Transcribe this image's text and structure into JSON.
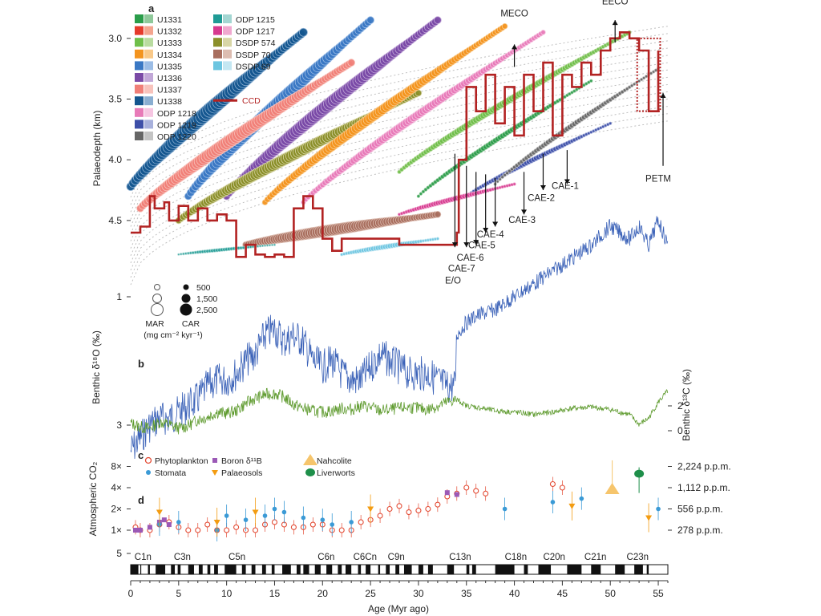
{
  "chart_data": {
    "type": "line",
    "panels": {
      "a": "a",
      "b": "b",
      "c": "c",
      "d": "d"
    },
    "x": {
      "label": "Age (Myr ago)",
      "range": [
        0,
        56
      ],
      "ticks": [
        0,
        5,
        10,
        15,
        20,
        25,
        30,
        35,
        40,
        45,
        50,
        55
      ]
    },
    "palaeodepth": {
      "label": "Palaeodepth (km)",
      "range": [
        2.75,
        4.95
      ],
      "ticks": [
        "3.0",
        "3.5",
        "4.0",
        "4.5"
      ],
      "tick_values": [
        3.0,
        3.5,
        4.0,
        4.5
      ],
      "legend": [
        {
          "label": "U1331",
          "dark": "#2a9d4a",
          "light": "#8fc99a"
        },
        {
          "label": "U1332",
          "dark": "#e53b2c",
          "light": "#f4a58f"
        },
        {
          "label": "U1333",
          "dark": "#6fbf4a",
          "light": "#b9dca0"
        },
        {
          "label": "U1334",
          "dark": "#f3941f",
          "light": "#f9c989"
        },
        {
          "label": "U1335",
          "dark": "#3a78c4",
          "light": "#9cbde6"
        },
        {
          "label": "U1336",
          "dark": "#7a4aa6",
          "light": "#c2a8d8"
        },
        {
          "label": "U1337",
          "dark": "#f07f78",
          "light": "#f8c3bc"
        },
        {
          "label": "U1338",
          "dark": "#14568f",
          "light": "#8aaed1"
        },
        {
          "label": "ODP 1218",
          "dark": "#e87ab8",
          "light": "#f6c6e2"
        },
        {
          "label": "ODP 1219",
          "dark": "#3d4fa8",
          "light": "#a8b1dc"
        },
        {
          "label": "ODP 1220",
          "dark": "#666666",
          "light": "#c4c4c4"
        },
        {
          "label": "ODP 1215",
          "dark": "#1f9b95",
          "light": "#a3d6d2"
        },
        {
          "label": "ODP 1217",
          "dark": "#d63a8f",
          "light": "#f0a8cf"
        },
        {
          "label": "DSDP 574",
          "dark": "#8b8f2a",
          "light": "#d8d6a6"
        },
        {
          "label": "DSDP 70",
          "dark": "#a86e5e",
          "light": "#dcbcb0"
        },
        {
          "label": "DSDP 69",
          "dark": "#6cc5e0",
          "light": "#c4e7f2"
        }
      ],
      "ccd_label": "CCD",
      "ccd_color": "#b22222",
      "ccd": [
        [
          0,
          4.6
        ],
        [
          1,
          4.55
        ],
        [
          2,
          4.3
        ],
        [
          2.5,
          4.4
        ],
        [
          3.5,
          4.35
        ],
        [
          4,
          4.5
        ],
        [
          5,
          4.38
        ],
        [
          6,
          4.5
        ],
        [
          7,
          4.4
        ],
        [
          8,
          4.5
        ],
        [
          9,
          4.45
        ],
        [
          10,
          4.5
        ],
        [
          11,
          4.8
        ],
        [
          12,
          4.7
        ],
        [
          13,
          4.78
        ],
        [
          14,
          4.8
        ],
        [
          15,
          4.78
        ],
        [
          16,
          4.8
        ],
        [
          17,
          4.4
        ],
        [
          18,
          4.3
        ],
        [
          19,
          4.4
        ],
        [
          20,
          4.65
        ],
        [
          21,
          4.75
        ],
        [
          22,
          4.65
        ],
        [
          28,
          4.7
        ],
        [
          34,
          4.6
        ],
        [
          34.2,
          4.0
        ],
        [
          35,
          3.4
        ],
        [
          36,
          3.6
        ],
        [
          37,
          3.3
        ],
        [
          38,
          3.7
        ],
        [
          39,
          3.4
        ],
        [
          40,
          3.8
        ],
        [
          41,
          3.3
        ],
        [
          42,
          3.6
        ],
        [
          43,
          3.2
        ],
        [
          44,
          3.8
        ],
        [
          45,
          3.3
        ],
        [
          46,
          3.4
        ],
        [
          47,
          3.2
        ],
        [
          48,
          3.3
        ],
        [
          49,
          3.1
        ],
        [
          50,
          3.0
        ],
        [
          51,
          2.95
        ],
        [
          52,
          3.0
        ],
        [
          53,
          3.1
        ],
        [
          54,
          3.6
        ],
        [
          55,
          3.1
        ]
      ],
      "mar_label": "MAR",
      "car_label": "CAR",
      "size_units": "(mg cm⁻² kyr⁻¹)",
      "size_legend": [
        "500",
        "1,500",
        "2,500"
      ],
      "events": [
        {
          "label": "MECO",
          "age": 40.0,
          "depth": 3.05
        },
        {
          "label": "EECO",
          "age": 50.5,
          "depth": 2.85
        },
        {
          "label": "PETM",
          "age": 55.5,
          "depth": 3.35
        },
        {
          "label": "E/O",
          "age": 33.8,
          "depth": 4.72
        },
        {
          "label": "CAE-7",
          "age": 35.0,
          "depth": 4.72
        },
        {
          "label": "CAE-6",
          "age": 36.0,
          "depth": 4.7
        },
        {
          "label": "CAE-5",
          "age": 37.0,
          "depth": 4.6
        },
        {
          "label": "CAE-4",
          "age": 38.0,
          "depth": 4.55
        },
        {
          "label": "CAE-3",
          "age": 41.0,
          "depth": 4.45
        },
        {
          "label": "CAE-2",
          "age": 43.0,
          "depth": 4.25
        },
        {
          "label": "CAE-1",
          "age": 45.5,
          "depth": 4.2
        }
      ]
    },
    "benthic_d18O": {
      "label": "Benthic δ¹⁸O (‰)",
      "ticks": [
        "1",
        "3",
        "5"
      ],
      "tick_values": [
        1,
        3,
        5
      ],
      "color": "#3b62b8",
      "points": [
        [
          0,
          3.4
        ],
        [
          1,
          3.2
        ],
        [
          2,
          3.0
        ],
        [
          3,
          2.9
        ],
        [
          4,
          2.9
        ],
        [
          5,
          2.8
        ],
        [
          6,
          2.7
        ],
        [
          7,
          2.6
        ],
        [
          8,
          2.4
        ],
        [
          9,
          2.3
        ],
        [
          10,
          2.3
        ],
        [
          11,
          2.2
        ],
        [
          12,
          2.0
        ],
        [
          13,
          1.9
        ],
        [
          14,
          1.6
        ],
        [
          15,
          1.5
        ],
        [
          16,
          1.7
        ],
        [
          17,
          1.6
        ],
        [
          18,
          1.7
        ],
        [
          19,
          2.0
        ],
        [
          20,
          2.1
        ],
        [
          21,
          2.0
        ],
        [
          22,
          2.2
        ],
        [
          23,
          2.3
        ],
        [
          24,
          2.3
        ],
        [
          25,
          2.1
        ],
        [
          26,
          1.9
        ],
        [
          27,
          2.0
        ],
        [
          28,
          2.1
        ],
        [
          29,
          2.2
        ],
        [
          30,
          2.2
        ],
        [
          31,
          2.2
        ],
        [
          32,
          2.3
        ],
        [
          33,
          2.4
        ],
        [
          33.8,
          2.4
        ],
        [
          34,
          1.6
        ],
        [
          35,
          1.4
        ],
        [
          36,
          1.3
        ],
        [
          38,
          1.2
        ],
        [
          40,
          1.0
        ],
        [
          42,
          0.8
        ],
        [
          44,
          0.6
        ],
        [
          46,
          0.4
        ],
        [
          48,
          0.2
        ],
        [
          50,
          -0.1
        ],
        [
          52,
          0.1
        ],
        [
          53,
          -0.1
        ],
        [
          54,
          0.2
        ],
        [
          55,
          -0.2
        ],
        [
          56,
          0.2
        ]
      ]
    },
    "benthic_d13C": {
      "label": "Benthic δ¹³C (‰)",
      "ticks": [
        "2",
        "0"
      ],
      "tick_values": [
        2,
        0
      ],
      "color": "#5f9b2f",
      "points": [
        [
          0,
          0.6
        ],
        [
          1,
          0.3
        ],
        [
          2,
          0.2
        ],
        [
          3,
          0.7
        ],
        [
          4,
          0.5
        ],
        [
          5,
          0.2
        ],
        [
          6,
          0.4
        ],
        [
          7,
          0.9
        ],
        [
          8,
          1.1
        ],
        [
          9,
          1.5
        ],
        [
          10,
          1.4
        ],
        [
          11,
          1.6
        ],
        [
          12,
          2.2
        ],
        [
          13,
          2.6
        ],
        [
          14,
          2.9
        ],
        [
          15,
          3.0
        ],
        [
          16,
          2.7
        ],
        [
          17,
          2.1
        ],
        [
          18,
          1.8
        ],
        [
          19,
          1.6
        ],
        [
          20,
          1.5
        ],
        [
          21,
          1.6
        ],
        [
          22,
          1.8
        ],
        [
          23,
          1.7
        ],
        [
          24,
          2.0
        ],
        [
          25,
          1.9
        ],
        [
          26,
          1.6
        ],
        [
          27,
          1.7
        ],
        [
          28,
          1.8
        ],
        [
          29,
          1.9
        ],
        [
          30,
          1.8
        ],
        [
          31,
          1.7
        ],
        [
          32,
          2.0
        ],
        [
          33,
          2.3
        ],
        [
          34,
          2.5
        ],
        [
          35,
          2.0
        ],
        [
          36,
          1.9
        ],
        [
          38,
          1.6
        ],
        [
          40,
          1.5
        ],
        [
          42,
          1.3
        ],
        [
          44,
          1.5
        ],
        [
          46,
          1.8
        ],
        [
          48,
          1.9
        ],
        [
          50,
          1.7
        ],
        [
          52,
          1.3
        ],
        [
          53,
          0.5
        ],
        [
          54,
          1.0
        ],
        [
          55,
          2.3
        ],
        [
          56,
          3.2
        ]
      ]
    },
    "co2": {
      "label": "Atmospheric CO₂",
      "left_ticks": [
        "8×",
        "4×",
        "2×",
        "1×"
      ],
      "left_values": [
        8,
        4,
        2,
        1
      ],
      "right_ticks": [
        "2,224 p.p.m.",
        "1,112 p.p.m.",
        "556 p.p.m.",
        "278 p.p.m."
      ],
      "legend": [
        {
          "label": "Phytoplankton",
          "color": "#e34a33",
          "marker": "open-circle"
        },
        {
          "label": "Boron δ¹¹B",
          "color": "#9b59b6",
          "marker": "square"
        },
        {
          "label": "Nahcolite",
          "color": "#f6c56c",
          "marker": "triangle-up"
        },
        {
          "label": "Stomata",
          "color": "#3a9ad6",
          "marker": "dot"
        },
        {
          "label": "Palaeosols",
          "color": "#f39c12",
          "marker": "triangle-down"
        },
        {
          "label": "Liverworts",
          "color": "#1e8f4a",
          "marker": "big-dot"
        }
      ],
      "series": [
        {
          "name": "Phytoplankton",
          "x": [
            0.5,
            1,
            2,
            3,
            4,
            5,
            6,
            7,
            8,
            9,
            10,
            11,
            12,
            13,
            14,
            15,
            16,
            17,
            18,
            19,
            20,
            21,
            22,
            23,
            24,
            25,
            26,
            27,
            28,
            29,
            30,
            31,
            32,
            33,
            34,
            35,
            36,
            37,
            44,
            45
          ],
          "y": [
            1.1,
            1.0,
            1.0,
            1.2,
            1.3,
            1.1,
            1.0,
            1.0,
            1.2,
            1.0,
            1.0,
            1.1,
            1.0,
            1.0,
            1.2,
            1.3,
            1.2,
            1.1,
            1.1,
            1.2,
            1.2,
            1.0,
            1.0,
            1.0,
            1.3,
            1.4,
            1.6,
            2.0,
            2.2,
            1.8,
            1.9,
            2.0,
            2.3,
            3.0,
            3.3,
            4.0,
            3.6,
            3.3,
            4.5,
            4.0
          ]
        },
        {
          "name": "Boron δ¹¹B",
          "x": [
            0.5,
            1,
            2,
            3,
            3.5,
            4,
            33,
            34
          ],
          "y": [
            1.0,
            1.0,
            1.1,
            1.3,
            1.4,
            1.2,
            3.4,
            3.2
          ]
        },
        {
          "name": "Stomata",
          "x": [
            3,
            5,
            9,
            10,
            12,
            14,
            15,
            16,
            18,
            20,
            21,
            23,
            39,
            44,
            47,
            55
          ],
          "y": [
            1.2,
            1.3,
            1.0,
            1.6,
            1.4,
            1.6,
            2.0,
            1.8,
            1.5,
            1.4,
            1.2,
            1.3,
            2.0,
            2.5,
            2.8,
            2.0
          ]
        },
        {
          "name": "Palaeosols",
          "x": [
            3,
            9,
            13,
            25,
            46,
            54
          ],
          "y": [
            1.8,
            1.3,
            1.8,
            2.0,
            2.2,
            1.5
          ]
        },
        {
          "name": "Nahcolite",
          "x": [
            50.2
          ],
          "y": [
            3.8
          ]
        },
        {
          "name": "Liverworts",
          "x": [
            53
          ],
          "y": [
            6.3
          ]
        }
      ]
    },
    "chrons": {
      "labels": [
        {
          "label": "C1n",
          "age": 0.4
        },
        {
          "label": "C3n",
          "age": 4.5
        },
        {
          "label": "C5n",
          "age": 10.2
        },
        {
          "label": "C6n",
          "age": 19.5
        },
        {
          "label": "C6Cn",
          "age": 23.2
        },
        {
          "label": "C9n",
          "age": 26.8
        },
        {
          "label": "C13n",
          "age": 33.2
        },
        {
          "label": "C18n",
          "age": 39.0
        },
        {
          "label": "C20n",
          "age": 43.0
        },
        {
          "label": "C21n",
          "age": 47.3
        },
        {
          "label": "C23n",
          "age": 51.7
        }
      ],
      "normal_polarity": [
        [
          0,
          0.8
        ],
        [
          1.0,
          1.1
        ],
        [
          1.8,
          2.0
        ],
        [
          2.6,
          3.6
        ],
        [
          4.2,
          4.6
        ],
        [
          4.9,
          5.2
        ],
        [
          6.0,
          6.6
        ],
        [
          7.1,
          7.5
        ],
        [
          8.0,
          8.3
        ],
        [
          8.7,
          9.1
        ],
        [
          9.8,
          11.0
        ],
        [
          11.6,
          12.0
        ],
        [
          12.6,
          13.0
        ],
        [
          13.7,
          14.1
        ],
        [
          14.7,
          15.0
        ],
        [
          15.8,
          16.7
        ],
        [
          17.3,
          17.7
        ],
        [
          18.0,
          18.6
        ],
        [
          19.2,
          19.8
        ],
        [
          20.4,
          21.0
        ],
        [
          21.6,
          22.0
        ],
        [
          22.4,
          23.0
        ],
        [
          23.7,
          24.0
        ],
        [
          24.5,
          25.0
        ],
        [
          25.8,
          26.0
        ],
        [
          26.6,
          27.0
        ],
        [
          27.6,
          28.0
        ],
        [
          28.5,
          29.3
        ],
        [
          30.0,
          30.5
        ],
        [
          31.0,
          31.5
        ],
        [
          33.0,
          33.7
        ],
        [
          35.0,
          35.3
        ],
        [
          35.6,
          36.0
        ],
        [
          38.0,
          40.0
        ],
        [
          41.0,
          41.4
        ],
        [
          42.5,
          43.8
        ],
        [
          45.5,
          47.0
        ],
        [
          48.0,
          49.0
        ],
        [
          50.5,
          51.5
        ],
        [
          52.5,
          53.4
        ],
        [
          53.8,
          54.0
        ]
      ]
    }
  }
}
